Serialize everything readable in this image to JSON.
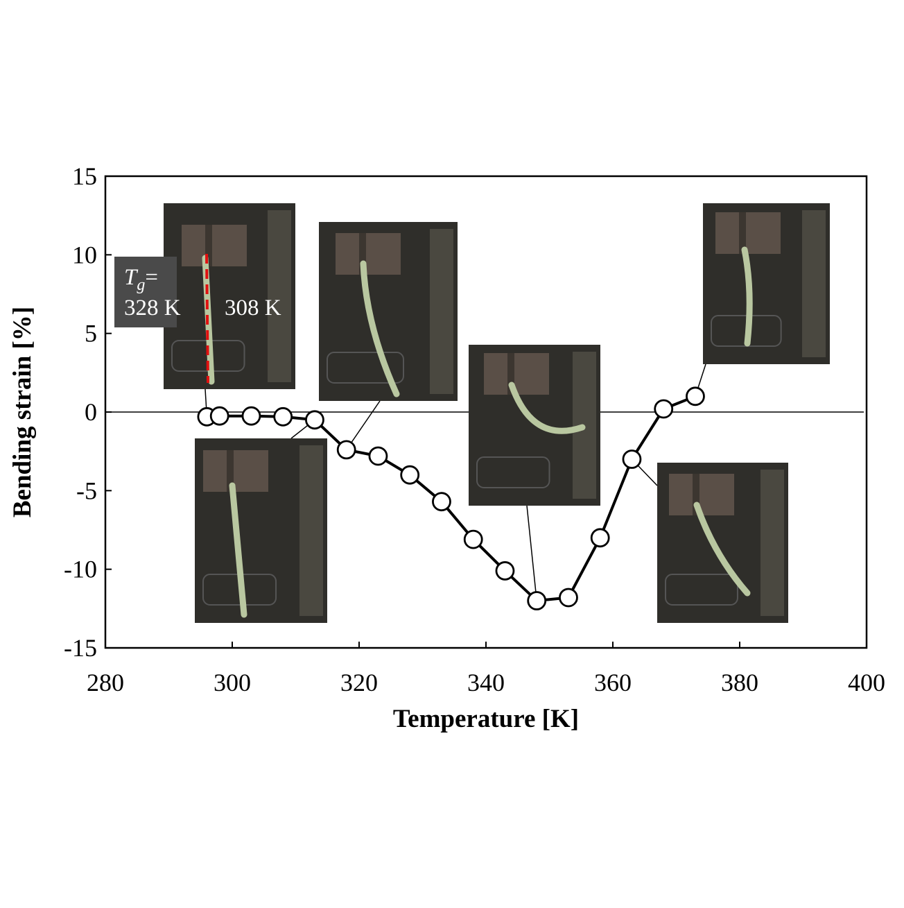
{
  "chart_data": {
    "type": "line",
    "xlabel": "Temperature [K]",
    "ylabel": "Bending strain [%]",
    "xlim": [
      280,
      400
    ],
    "ylim": [
      -15,
      15
    ],
    "xticks": [
      280,
      300,
      320,
      340,
      360,
      380,
      400
    ],
    "yticks": [
      15,
      10,
      5,
      0,
      -5,
      -10,
      -15
    ],
    "grid": false,
    "zero_line": true,
    "marker": "open-circle",
    "series": [
      {
        "x": [
          296,
          298,
          303,
          308,
          313,
          318,
          323,
          328,
          333,
          338,
          343,
          348,
          353,
          358,
          363,
          368,
          373
        ],
        "y": [
          -0.3,
          -0.25,
          -0.25,
          -0.3,
          -0.5,
          -2.4,
          -2.8,
          -4.0,
          -5.7,
          -8.1,
          -10.1,
          -12.0,
          -11.8,
          -8.0,
          -3.0,
          0.2,
          1.0
        ]
      }
    ],
    "annotations": {
      "tg_symbol": "T",
      "tg_subscript": "g",
      "tg_equals": "=",
      "tg_value": "328 K",
      "start_temperature": "308 K"
    }
  },
  "colors": {
    "line": "#000000",
    "marker_fill": "#ffffff",
    "photo_background": "#2f2e2a",
    "clamp": "#5a4f47",
    "specimen": "#b9c7a0",
    "reference_line": "#e01010",
    "label_box": "#4a4a4a"
  }
}
